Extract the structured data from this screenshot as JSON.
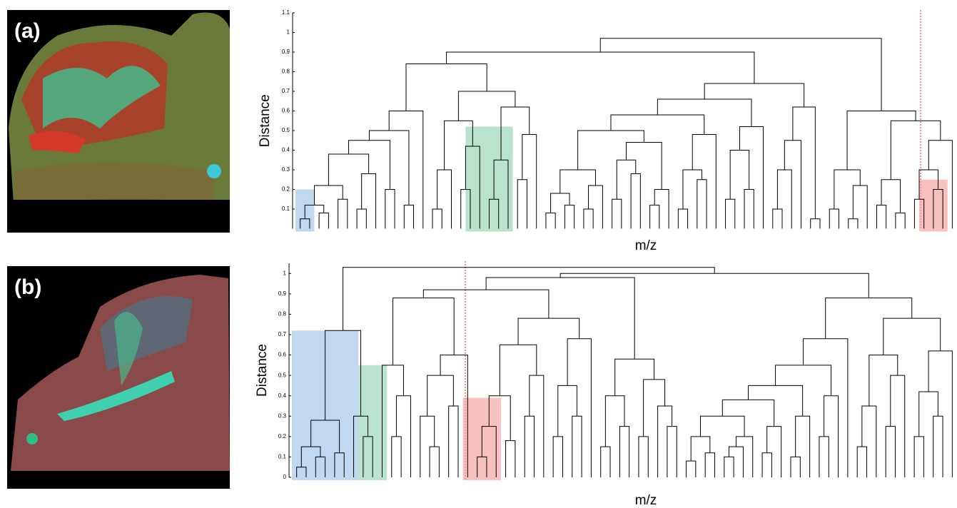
{
  "chart_data": [
    {
      "type": "dendrogram",
      "panel_label": "(a)",
      "ylabel": "Distance",
      "xlabel": "m/z",
      "ylim": [
        0,
        1.1
      ],
      "yticks": [
        0.1,
        0.2,
        0.3,
        0.4,
        0.5,
        0.6,
        0.7,
        0.8,
        0.9,
        1,
        1.1
      ],
      "merge_heights": [
        0.05,
        0.12,
        0.08,
        0.22,
        0.15,
        0.38,
        0.1,
        0.28,
        0.45,
        0.2,
        0.5,
        0.12,
        0.6,
        0.84,
        0.1,
        0.3,
        0.55,
        0.2,
        0.42,
        0.7,
        0.15,
        0.35,
        0.62,
        0.25,
        0.48,
        0.9,
        0.08,
        0.18,
        0.12,
        0.3,
        0.1,
        0.22,
        0.5,
        0.15,
        0.35,
        0.28,
        0.44,
        0.12,
        0.2,
        0.58,
        0.1,
        0.3,
        0.25,
        0.48,
        0.66,
        0.15,
        0.4,
        0.2,
        0.52,
        0.74,
        0.1,
        0.3,
        0.45,
        0.62,
        0.05,
        0.97,
        0.1,
        0.3,
        0.05,
        0.22,
        0.6,
        0.12,
        0.25,
        0.08,
        0.55,
        0.15,
        0.3,
        0.2,
        0.45
      ],
      "highlights": [
        {
          "color": "#9fc5e8",
          "leaves": [
            0,
            1
          ],
          "top": 0.2
        },
        {
          "color": "#93d4b0",
          "leaves": [
            18,
            22
          ],
          "top": 0.52
        },
        {
          "color": "#f4a0a0",
          "leaves": [
            66,
            68
          ],
          "top": 0.25
        }
      ]
    },
    {
      "type": "dendrogram",
      "panel_label": "(b)",
      "ylabel": "Distance",
      "xlabel": "m/z",
      "ylim": [
        0,
        1.05
      ],
      "yticks": [
        0,
        0.1,
        0.2,
        0.3,
        0.4,
        0.5,
        0.6,
        0.7,
        0.8,
        0.9,
        1
      ],
      "merge_heights": [
        0.05,
        0.15,
        0.1,
        0.28,
        0.12,
        0.72,
        0.3,
        0.2,
        1.03,
        0.55,
        0.2,
        0.4,
        0.88,
        0.3,
        0.15,
        0.5,
        0.35,
        0.6,
        0.92,
        0.1,
        0.25,
        0.4,
        0.18,
        0.65,
        0.3,
        0.5,
        0.78,
        0.2,
        0.45,
        0.3,
        0.68,
        0.98,
        0.15,
        0.4,
        0.25,
        0.58,
        0.2,
        0.48,
        0.35,
        0.25,
        1.0,
        0.08,
        0.2,
        0.12,
        0.3,
        0.1,
        0.15,
        0.2,
        0.38,
        0.12,
        0.25,
        0.45,
        0.1,
        0.3,
        0.55,
        0.2,
        0.4,
        0.68,
        0.88,
        0.15,
        0.35,
        0.6,
        0.25,
        0.5,
        0.78,
        0.2,
        0.42,
        0.3,
        0.62
      ],
      "highlights": [
        {
          "color": "#9fc5e8",
          "leaves": [
            0,
            6
          ],
          "top": 0.72
        },
        {
          "color": "#93d4b0",
          "leaves": [
            7,
            9
          ],
          "top": 0.55
        },
        {
          "color": "#f4a0a0",
          "leaves": [
            18,
            21
          ],
          "top": 0.39
        }
      ]
    }
  ]
}
